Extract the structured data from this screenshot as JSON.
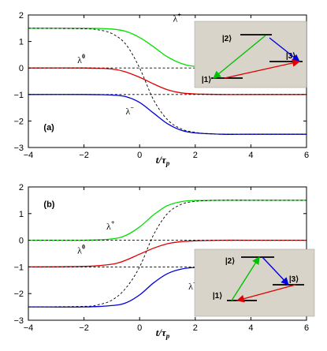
{
  "chart_data": [
    {
      "type": "line",
      "panel_label": "(a)",
      "xlabel": "t/τp",
      "xlabel_main": "t/τ",
      "xlabel_sub": "p",
      "xlim": [
        -4,
        6
      ],
      "ylim": [
        -3,
        2
      ],
      "xticks": [
        -4,
        -2,
        0,
        2,
        4,
        6
      ],
      "yticks": [
        -3,
        -2,
        -1,
        0,
        1,
        2
      ],
      "grid": false,
      "series": [
        {
          "name": "λ+",
          "label_base": "λ",
          "label_sup": "+",
          "color": "#00e000",
          "x": [
            -4,
            -2,
            -1,
            -0.5,
            0,
            0.5,
            1,
            1.5,
            2,
            3,
            4,
            6
          ],
          "y": [
            1.5,
            1.5,
            1.47,
            1.38,
            1.15,
            0.8,
            0.42,
            0.17,
            0.06,
            0.01,
            0,
            0
          ]
        },
        {
          "name": "λ0",
          "label_base": "λ",
          "label_sup": "0",
          "color": "#e00000",
          "x": [
            -4,
            -2,
            -1,
            -0.5,
            0,
            0.5,
            1,
            1.5,
            2,
            3,
            4,
            6
          ],
          "y": [
            0,
            0,
            -0.04,
            -0.15,
            -0.35,
            -0.6,
            -0.82,
            -0.94,
            -0.98,
            -1,
            -1,
            -1
          ]
        },
        {
          "name": "λ−",
          "label_base": "λ",
          "label_sup": "−",
          "color": "#0000e0",
          "x": [
            -4,
            -2,
            -1,
            -0.5,
            0,
            0.5,
            1,
            1.5,
            2,
            3,
            4,
            6
          ],
          "y": [
            -1,
            -1,
            -1.02,
            -1.08,
            -1.3,
            -1.7,
            -2.1,
            -2.35,
            -2.45,
            -2.5,
            -2.5,
            -2.5
          ]
        },
        {
          "name": "",
          "style": "dashed",
          "color": "#000000",
          "x": [
            -4,
            -2,
            -1.5,
            -1,
            -0.5,
            0,
            0.5,
            1,
            1.5,
            2,
            2.5,
            3,
            4,
            6
          ],
          "y": [
            1.5,
            1.48,
            1.44,
            1.3,
            0.9,
            0,
            -1.2,
            -1.95,
            -2.3,
            -2.43,
            -2.48,
            -2.5,
            -2.5,
            -2.5
          ]
        },
        {
          "name": "",
          "style": "dashed",
          "color": "#000000",
          "x": [
            -4,
            6
          ],
          "y": [
            0,
            0
          ]
        },
        {
          "name": "",
          "style": "dashed",
          "color": "#000000",
          "x": [
            -4,
            6
          ],
          "y": [
            -1,
            -1
          ]
        }
      ],
      "inset": {
        "background": "#d9d4c9",
        "levels": [
          {
            "label": "|1⟩",
            "state": "1"
          },
          {
            "label": "|2⟩",
            "state": "2"
          },
          {
            "label": "|3⟩",
            "state": "3"
          }
        ],
        "arrows": [
          {
            "from": "1",
            "to": "2",
            "color": "#00c000",
            "direction": "to-1"
          },
          {
            "from": "2",
            "to": "3",
            "color": "#0000e0",
            "direction": "to-2"
          },
          {
            "from": "1",
            "to": "3",
            "color": "#e00000",
            "direction": "to-3"
          }
        ]
      }
    },
    {
      "type": "line",
      "panel_label": "(b)",
      "xlabel": "t/τp",
      "xlabel_main": "t/τ",
      "xlabel_sub": "p",
      "xlim": [
        -4,
        6
      ],
      "ylim": [
        -3,
        2
      ],
      "xticks": [
        -4,
        -2,
        0,
        2,
        4,
        6
      ],
      "yticks": [
        -3,
        -2,
        -1,
        0,
        1,
        2
      ],
      "grid": false,
      "series": [
        {
          "name": "λ+",
          "label_base": "λ",
          "label_sup": "+",
          "color": "#00e000",
          "x": [
            -4,
            -2,
            -1,
            -0.5,
            0,
            0.5,
            1,
            1.5,
            2,
            3,
            4,
            6
          ],
          "y": [
            0,
            0,
            0.05,
            0.18,
            0.5,
            0.95,
            1.3,
            1.45,
            1.49,
            1.5,
            1.5,
            1.5
          ]
        },
        {
          "name": "λ0",
          "label_base": "λ",
          "label_sup": "0",
          "color": "#e00000",
          "x": [
            -4,
            -2,
            -1,
            -0.5,
            0,
            0.5,
            1,
            1.5,
            2,
            3,
            4,
            6
          ],
          "y": [
            -1,
            -0.98,
            -0.9,
            -0.75,
            -0.52,
            -0.3,
            -0.13,
            -0.05,
            -0.02,
            0,
            0,
            0
          ]
        },
        {
          "name": "λ−",
          "label_base": "λ",
          "label_sup": "−",
          "color": "#0000e0",
          "x": [
            -4,
            -2,
            -1,
            -0.5,
            0,
            0.5,
            1,
            1.5,
            2,
            3,
            4,
            6
          ],
          "y": [
            -2.5,
            -2.5,
            -2.45,
            -2.35,
            -2.05,
            -1.6,
            -1.25,
            -1.08,
            -1.02,
            -1,
            -1,
            -1
          ]
        },
        {
          "name": "",
          "style": "dashed",
          "color": "#000000",
          "x": [
            -4,
            -2,
            -1.5,
            -1,
            -0.5,
            0,
            0.5,
            1,
            1.5,
            2,
            2.5,
            3,
            4,
            6
          ],
          "y": [
            -2.5,
            -2.48,
            -2.42,
            -2.25,
            -1.8,
            -1,
            0.2,
            1.0,
            1.35,
            1.46,
            1.49,
            1.5,
            1.5,
            1.5
          ]
        },
        {
          "name": "",
          "style": "dashed",
          "color": "#000000",
          "x": [
            -4,
            6
          ],
          "y": [
            0,
            0
          ]
        },
        {
          "name": "",
          "style": "dashed",
          "color": "#000000",
          "x": [
            -4,
            6
          ],
          "y": [
            -1,
            -1
          ]
        }
      ],
      "inset": {
        "background": "#d9d4c9",
        "levels": [
          {
            "label": "|1⟩",
            "state": "1"
          },
          {
            "label": "|2⟩",
            "state": "2"
          },
          {
            "label": "|3⟩",
            "state": "3"
          }
        ],
        "arrows": [
          {
            "from": "1",
            "to": "2",
            "color": "#00c000",
            "direction": "to-2"
          },
          {
            "from": "2",
            "to": "3",
            "color": "#0000e0",
            "direction": "to-3"
          },
          {
            "from": "3",
            "to": "1",
            "color": "#e00000",
            "direction": "to-1"
          }
        ]
      }
    }
  ]
}
